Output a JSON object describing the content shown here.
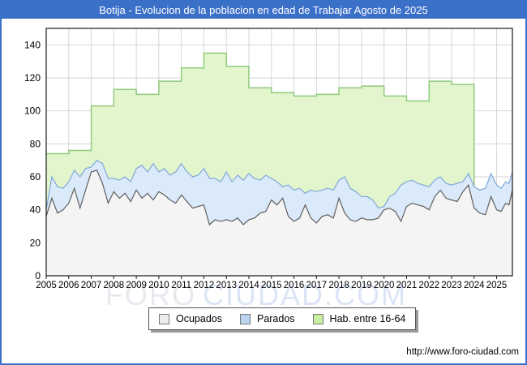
{
  "header": {
    "title": "Botija - Evolucion de la poblacion en edad de Trabajar Agosto de 2025"
  },
  "footer": {
    "url": "http://www.foro-ciudad.com"
  },
  "watermark": {
    "part1": "FORO",
    "part2": "CIUDAD.COM"
  },
  "palette": {
    "brand_blue": "#3b70c9",
    "grid": "#d6d6d6",
    "plot_border": "#1a1a1a",
    "axis_text": "#000000",
    "watermark1": "#e2e6ec",
    "watermark2": "#d6dff4"
  },
  "legend": {
    "items": [
      {
        "label": "Ocupados",
        "fill": "#ececec",
        "stroke": "#777777"
      },
      {
        "label": "Parados",
        "fill": "#b9d5f0",
        "stroke": "#777777"
      },
      {
        "label": "Hab. entre 16-64",
        "fill": "#c9ee9f",
        "stroke": "#777777"
      }
    ]
  },
  "chart_data": {
    "type": "area",
    "title": "Botija - Evolucion de la poblacion en edad de Trabajar Agosto de 2025",
    "xlabel": "",
    "ylabel": "",
    "xlim": [
      2005,
      2025.7
    ],
    "ylim": [
      0,
      150
    ],
    "y_ticks": [
      0,
      20,
      40,
      60,
      80,
      100,
      120,
      140
    ],
    "x_ticks": [
      2005,
      2006,
      2007,
      2008,
      2009,
      2010,
      2011,
      2012,
      2013,
      2014,
      2015,
      2016,
      2017,
      2018,
      2019,
      2020,
      2021,
      2022,
      2023,
      2024,
      2025
    ],
    "x_tick_labels": [
      "2005",
      "2006",
      "2007",
      "2008",
      "2009",
      "2010",
      "2011",
      "2012",
      "2013",
      "2014",
      "2015",
      "2016",
      "2017",
      "2018",
      "2019",
      "2020",
      "2021",
      "2022",
      "2023",
      "2024",
      "2025"
    ],
    "grid": true,
    "legend_position": "bottom",
    "series": [
      {
        "name": "Hab. entre 16-64",
        "style": "step-area",
        "fill": "#e3f5cc",
        "stroke": "#90ca7e",
        "years": [
          2005,
          2006,
          2007,
          2008,
          2009,
          2010,
          2011,
          2012,
          2013,
          2014,
          2015,
          2016,
          2017,
          2018,
          2019,
          2020,
          2021,
          2022,
          2023,
          2024,
          2025
        ],
        "values": [
          74,
          76,
          103,
          113,
          110,
          118,
          126,
          135,
          127,
          114,
          111,
          109,
          110,
          114,
          115,
          109,
          106,
          118,
          116,
          52,
          52
        ]
      },
      {
        "name": "Parados",
        "style": "line-area",
        "fill": "#dbeafa",
        "stroke": "#7fa8d9",
        "points": [
          [
            2005.0,
            40
          ],
          [
            2005.25,
            60
          ],
          [
            2005.5,
            54
          ],
          [
            2005.75,
            53
          ],
          [
            2006.0,
            57
          ],
          [
            2006.25,
            64
          ],
          [
            2006.5,
            60
          ],
          [
            2006.75,
            65
          ],
          [
            2007.0,
            66
          ],
          [
            2007.25,
            70
          ],
          [
            2007.5,
            68
          ],
          [
            2007.75,
            59
          ],
          [
            2008.0,
            59
          ],
          [
            2008.25,
            58
          ],
          [
            2008.5,
            60
          ],
          [
            2008.75,
            57
          ],
          [
            2009.0,
            65
          ],
          [
            2009.25,
            67
          ],
          [
            2009.5,
            63
          ],
          [
            2009.75,
            68
          ],
          [
            2010.0,
            63
          ],
          [
            2010.25,
            65
          ],
          [
            2010.5,
            61
          ],
          [
            2010.75,
            63
          ],
          [
            2011.0,
            68
          ],
          [
            2011.25,
            63
          ],
          [
            2011.5,
            60
          ],
          [
            2011.75,
            61
          ],
          [
            2012.0,
            65
          ],
          [
            2012.25,
            59
          ],
          [
            2012.5,
            59
          ],
          [
            2012.75,
            57
          ],
          [
            2013.0,
            63
          ],
          [
            2013.25,
            57
          ],
          [
            2013.5,
            61
          ],
          [
            2013.75,
            58
          ],
          [
            2014.0,
            62
          ],
          [
            2014.25,
            59
          ],
          [
            2014.5,
            58
          ],
          [
            2014.75,
            61
          ],
          [
            2015.0,
            59
          ],
          [
            2015.25,
            57
          ],
          [
            2015.5,
            54
          ],
          [
            2015.75,
            55
          ],
          [
            2016.0,
            52
          ],
          [
            2016.25,
            53
          ],
          [
            2016.5,
            50
          ],
          [
            2016.75,
            52
          ],
          [
            2017.0,
            51
          ],
          [
            2017.25,
            52
          ],
          [
            2017.5,
            53
          ],
          [
            2017.75,
            52
          ],
          [
            2018.0,
            58
          ],
          [
            2018.25,
            60
          ],
          [
            2018.5,
            53
          ],
          [
            2018.75,
            51
          ],
          [
            2019.0,
            48
          ],
          [
            2019.25,
            48
          ],
          [
            2019.5,
            46
          ],
          [
            2019.75,
            41
          ],
          [
            2020.0,
            42
          ],
          [
            2020.25,
            48
          ],
          [
            2020.5,
            50
          ],
          [
            2020.75,
            55
          ],
          [
            2021.0,
            57
          ],
          [
            2021.25,
            58
          ],
          [
            2021.5,
            56
          ],
          [
            2021.75,
            55
          ],
          [
            2022.0,
            54
          ],
          [
            2022.25,
            58
          ],
          [
            2022.5,
            60
          ],
          [
            2022.75,
            56
          ],
          [
            2023.0,
            55
          ],
          [
            2023.25,
            56
          ],
          [
            2023.5,
            57
          ],
          [
            2023.75,
            62
          ],
          [
            2024.0,
            54
          ],
          [
            2024.25,
            52
          ],
          [
            2024.5,
            53
          ],
          [
            2024.75,
            62
          ],
          [
            2025.0,
            55
          ],
          [
            2025.2,
            53
          ],
          [
            2025.4,
            57
          ],
          [
            2025.55,
            56
          ],
          [
            2025.7,
            63
          ]
        ]
      },
      {
        "name": "Ocupados",
        "style": "line-area",
        "fill": "#f4f4f4",
        "stroke": "#5f5f5f",
        "points": [
          [
            2005.0,
            36
          ],
          [
            2005.25,
            47
          ],
          [
            2005.5,
            38
          ],
          [
            2005.75,
            40
          ],
          [
            2006.0,
            44
          ],
          [
            2006.25,
            53
          ],
          [
            2006.5,
            41
          ],
          [
            2006.75,
            52
          ],
          [
            2007.0,
            63
          ],
          [
            2007.25,
            64
          ],
          [
            2007.5,
            56
          ],
          [
            2007.75,
            44
          ],
          [
            2008.0,
            51
          ],
          [
            2008.25,
            47
          ],
          [
            2008.5,
            50
          ],
          [
            2008.75,
            45
          ],
          [
            2009.0,
            52
          ],
          [
            2009.25,
            47
          ],
          [
            2009.5,
            50
          ],
          [
            2009.75,
            46
          ],
          [
            2010.0,
            51
          ],
          [
            2010.25,
            49
          ],
          [
            2010.5,
            46
          ],
          [
            2010.75,
            44
          ],
          [
            2011.0,
            49
          ],
          [
            2011.25,
            45
          ],
          [
            2011.5,
            41
          ],
          [
            2011.75,
            42
          ],
          [
            2012.0,
            43
          ],
          [
            2012.25,
            31
          ],
          [
            2012.5,
            34
          ],
          [
            2012.75,
            33
          ],
          [
            2013.0,
            34
          ],
          [
            2013.25,
            33
          ],
          [
            2013.5,
            35
          ],
          [
            2013.75,
            31
          ],
          [
            2014.0,
            34
          ],
          [
            2014.25,
            35
          ],
          [
            2014.5,
            38
          ],
          [
            2014.75,
            39
          ],
          [
            2015.0,
            46
          ],
          [
            2015.25,
            43
          ],
          [
            2015.5,
            47
          ],
          [
            2015.75,
            36
          ],
          [
            2016.0,
            33
          ],
          [
            2016.25,
            35
          ],
          [
            2016.5,
            43
          ],
          [
            2016.75,
            35
          ],
          [
            2017.0,
            32
          ],
          [
            2017.25,
            36
          ],
          [
            2017.5,
            37
          ],
          [
            2017.75,
            35
          ],
          [
            2018.0,
            47
          ],
          [
            2018.25,
            38
          ],
          [
            2018.5,
            34
          ],
          [
            2018.75,
            33
          ],
          [
            2019.0,
            35
          ],
          [
            2019.25,
            34
          ],
          [
            2019.5,
            34
          ],
          [
            2019.75,
            35
          ],
          [
            2020.0,
            40
          ],
          [
            2020.25,
            41
          ],
          [
            2020.5,
            39
          ],
          [
            2020.75,
            33
          ],
          [
            2021.0,
            42
          ],
          [
            2021.25,
            44
          ],
          [
            2021.5,
            43
          ],
          [
            2021.75,
            42
          ],
          [
            2022.0,
            40
          ],
          [
            2022.25,
            48
          ],
          [
            2022.5,
            52
          ],
          [
            2022.75,
            47
          ],
          [
            2023.0,
            46
          ],
          [
            2023.25,
            45
          ],
          [
            2023.5,
            51
          ],
          [
            2023.75,
            55
          ],
          [
            2024.0,
            41
          ],
          [
            2024.25,
            38
          ],
          [
            2024.5,
            37
          ],
          [
            2024.75,
            48
          ],
          [
            2025.0,
            40
          ],
          [
            2025.2,
            39
          ],
          [
            2025.4,
            44
          ],
          [
            2025.55,
            43
          ],
          [
            2025.7,
            52
          ]
        ]
      }
    ]
  }
}
